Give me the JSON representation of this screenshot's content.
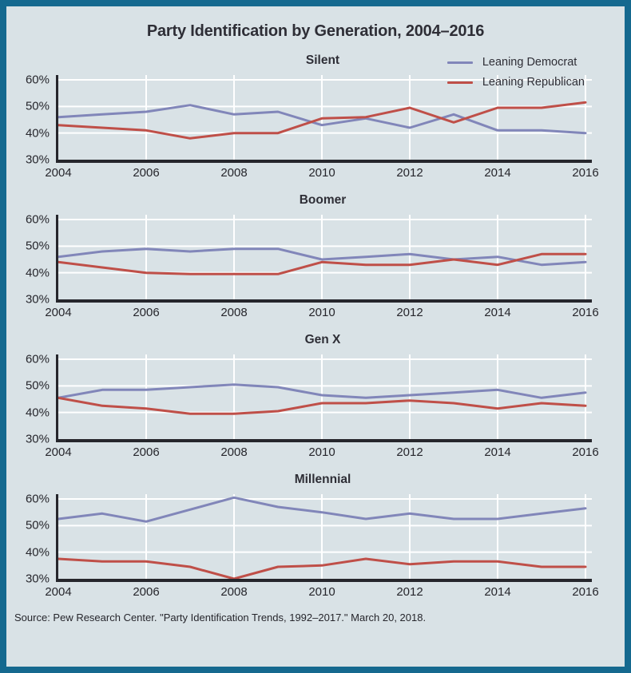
{
  "title": "Party Identification by Generation, 2004–2016",
  "colors": {
    "frame_border": "#15698f",
    "background": "#d9e2e6",
    "axis": "#26262c",
    "gridline": "#ffffff",
    "democrat": "#8186b9",
    "republican": "#bf4f48"
  },
  "legend": {
    "items": [
      {
        "label": "Leaning Democrat",
        "color": "#8186b9"
      },
      {
        "label": "Leaning Republican",
        "color": "#bf4f48"
      }
    ]
  },
  "axis": {
    "y_tick_labels": [
      "60%",
      "50%",
      "40%",
      "30%"
    ],
    "y_tick_values": [
      60,
      50,
      40,
      30
    ],
    "x_tick_labels": [
      "2004",
      "2006",
      "2008",
      "2010",
      "2012",
      "2014",
      "2016"
    ],
    "x_tick_years": [
      2004,
      2006,
      2008,
      2010,
      2012,
      2014,
      2016
    ],
    "ylim": [
      30,
      60
    ],
    "grid": true
  },
  "chart_data": [
    {
      "type": "line",
      "title": "Silent",
      "x": [
        2004,
        2005,
        2006,
        2007,
        2008,
        2009,
        2010,
        2011,
        2012,
        2013,
        2014,
        2015,
        2016
      ],
      "ylim": [
        30,
        60
      ],
      "series": [
        {
          "name": "Leaning Democrat",
          "color": "#8186b9",
          "values": [
            46,
            47,
            48,
            50.5,
            47,
            48,
            43,
            45.5,
            42,
            47,
            41,
            41,
            40
          ]
        },
        {
          "name": "Leaning Republican",
          "color": "#bf4f48",
          "values": [
            43,
            42,
            41,
            38,
            40,
            40,
            45.5,
            46,
            49.5,
            44,
            49.5,
            49.5,
            51.5
          ]
        }
      ]
    },
    {
      "type": "line",
      "title": "Boomer",
      "x": [
        2004,
        2005,
        2006,
        2007,
        2008,
        2009,
        2010,
        2011,
        2012,
        2013,
        2014,
        2015,
        2016
      ],
      "ylim": [
        30,
        60
      ],
      "series": [
        {
          "name": "Leaning Democrat",
          "color": "#8186b9",
          "values": [
            46,
            48,
            49,
            48,
            49,
            49,
            45,
            46,
            47,
            45,
            46,
            43,
            44
          ]
        },
        {
          "name": "Leaning Republican",
          "color": "#bf4f48",
          "values": [
            44,
            42,
            40,
            39.5,
            39.5,
            39.5,
            44,
            43,
            43,
            45,
            43,
            47,
            47
          ]
        }
      ]
    },
    {
      "type": "line",
      "title": "Gen X",
      "x": [
        2004,
        2005,
        2006,
        2007,
        2008,
        2009,
        2010,
        2011,
        2012,
        2013,
        2014,
        2015,
        2016
      ],
      "ylim": [
        30,
        60
      ],
      "series": [
        {
          "name": "Leaning Democrat",
          "color": "#8186b9",
          "values": [
            45.5,
            48.5,
            48.5,
            49.5,
            50.5,
            49.5,
            46.5,
            45.5,
            46.5,
            47.5,
            48.5,
            45.5,
            47.5
          ]
        },
        {
          "name": "Leaning Republican",
          "color": "#bf4f48",
          "values": [
            45.5,
            42.5,
            41.5,
            39.5,
            39.5,
            40.5,
            43.5,
            43.5,
            44.5,
            43.5,
            41.5,
            43.5,
            42.5
          ]
        }
      ]
    },
    {
      "type": "line",
      "title": "Millennial",
      "x": [
        2004,
        2005,
        2006,
        2007,
        2008,
        2009,
        2010,
        2011,
        2012,
        2013,
        2014,
        2015,
        2016
      ],
      "ylim": [
        30,
        60
      ],
      "series": [
        {
          "name": "Leaning Democrat",
          "color": "#8186b9",
          "values": [
            52.5,
            54.5,
            51.5,
            56,
            60.5,
            57,
            55,
            52.5,
            54.5,
            52.5,
            52.5,
            54.5,
            56.5
          ]
        },
        {
          "name": "Leaning Republican",
          "color": "#bf4f48",
          "values": [
            37.5,
            36.5,
            36.5,
            34.5,
            30,
            34.5,
            35,
            37.5,
            35.5,
            36.5,
            36.5,
            34.5,
            34.5
          ]
        }
      ]
    }
  ],
  "source": "Source: Pew Research Center. \"Party Identification Trends, 1992–2017.\" March 20, 2018."
}
